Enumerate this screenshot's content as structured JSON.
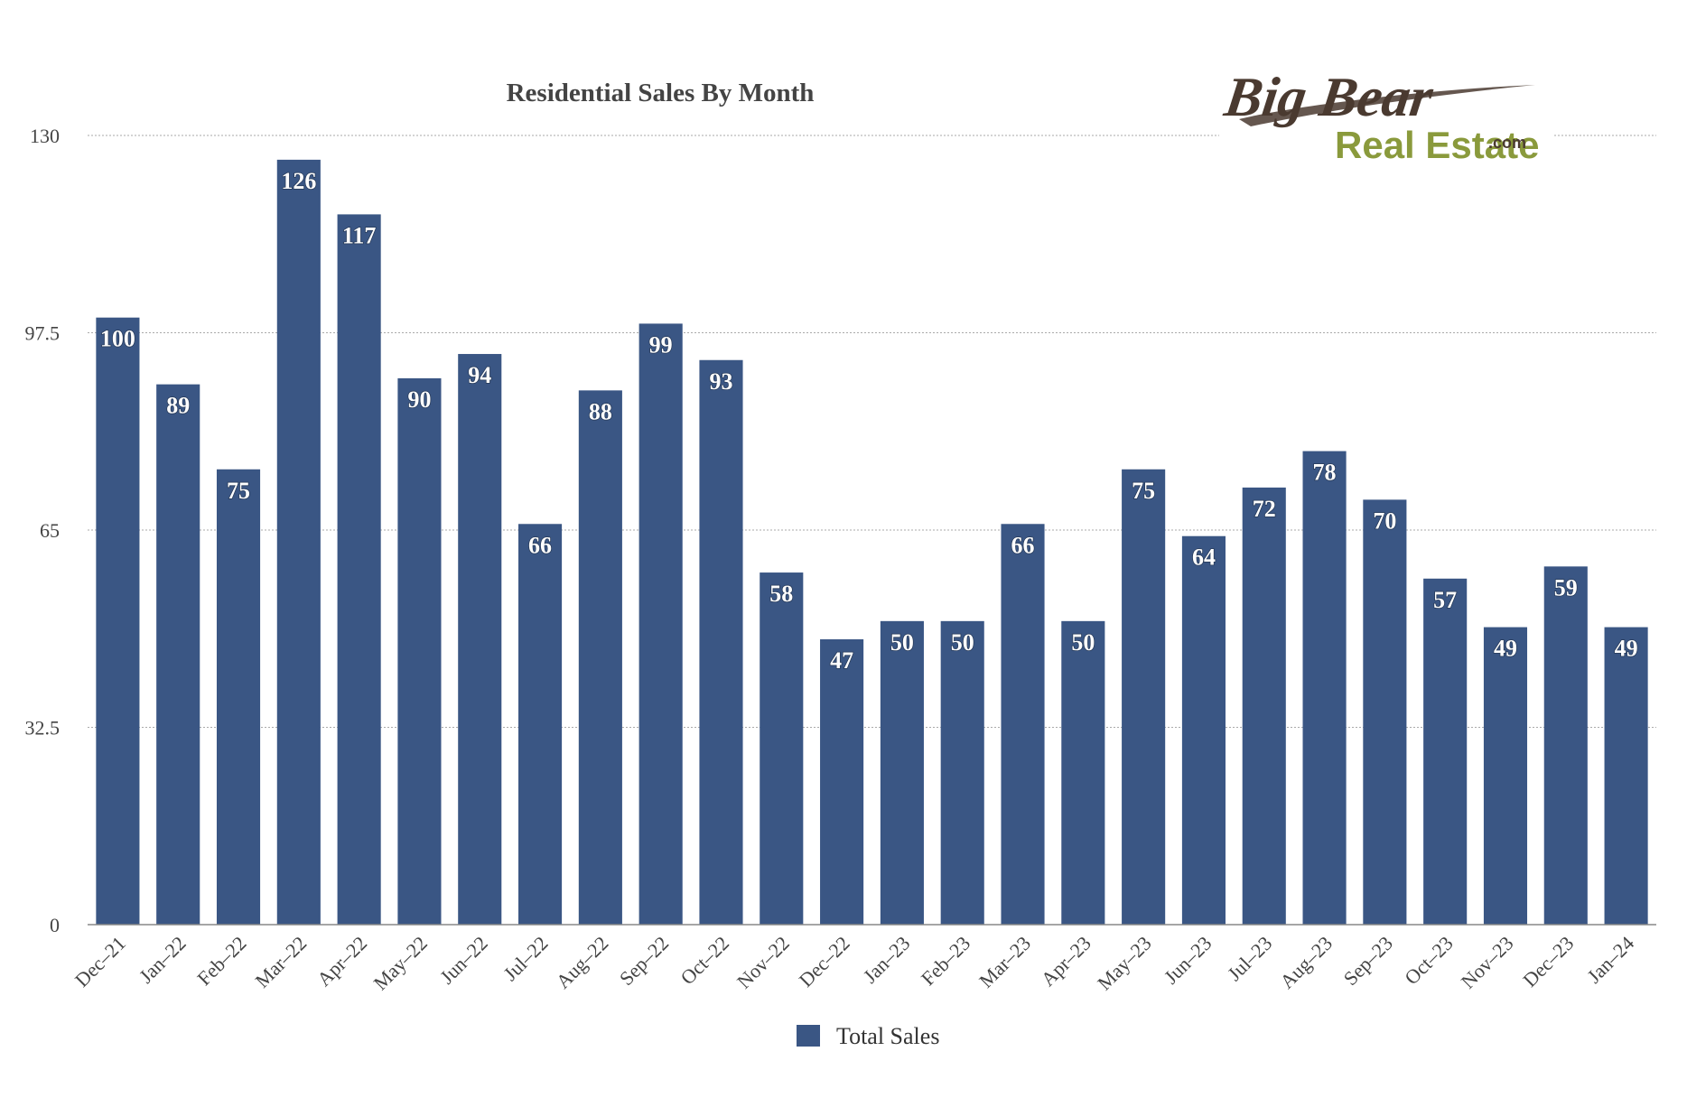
{
  "logo": {
    "line1": "Big Bear",
    "line2": "Real Estate",
    "suffix": ".com",
    "colors": {
      "line1": "#4a3a30",
      "line2": "#8a9a3c"
    }
  },
  "chart_data": {
    "type": "bar",
    "title": "Residential Sales By Month",
    "xlabel": "",
    "ylabel": "",
    "ylim": [
      0,
      130
    ],
    "yticks": [
      "0",
      "32.5",
      "65",
      "97.5",
      "130"
    ],
    "yticks_values": [
      0,
      32.5,
      65,
      97.5,
      130
    ],
    "grid": true,
    "legend_position": "bottom",
    "bar_color": "#3a5684",
    "categories": [
      "Dec–21",
      "Jan–22",
      "Feb–22",
      "Mar–22",
      "Apr–22",
      "May–22",
      "Jun–22",
      "Jul–22",
      "Aug–22",
      "Sep–22",
      "Oct–22",
      "Nov–22",
      "Dec–22",
      "Jan–23",
      "Feb–23",
      "Mar–23",
      "Apr–23",
      "May–23",
      "Jun–23",
      "Jul–23",
      "Aug–23",
      "Sep–23",
      "Oct–23",
      "Nov–23",
      "Dec–23",
      "Jan–24"
    ],
    "series": [
      {
        "name": "Total Sales",
        "values": [
          100,
          89,
          75,
          126,
          117,
          90,
          94,
          66,
          88,
          99,
          93,
          58,
          47,
          50,
          50,
          66,
          50,
          75,
          64,
          72,
          78,
          70,
          57,
          49,
          59,
          49
        ]
      }
    ]
  }
}
